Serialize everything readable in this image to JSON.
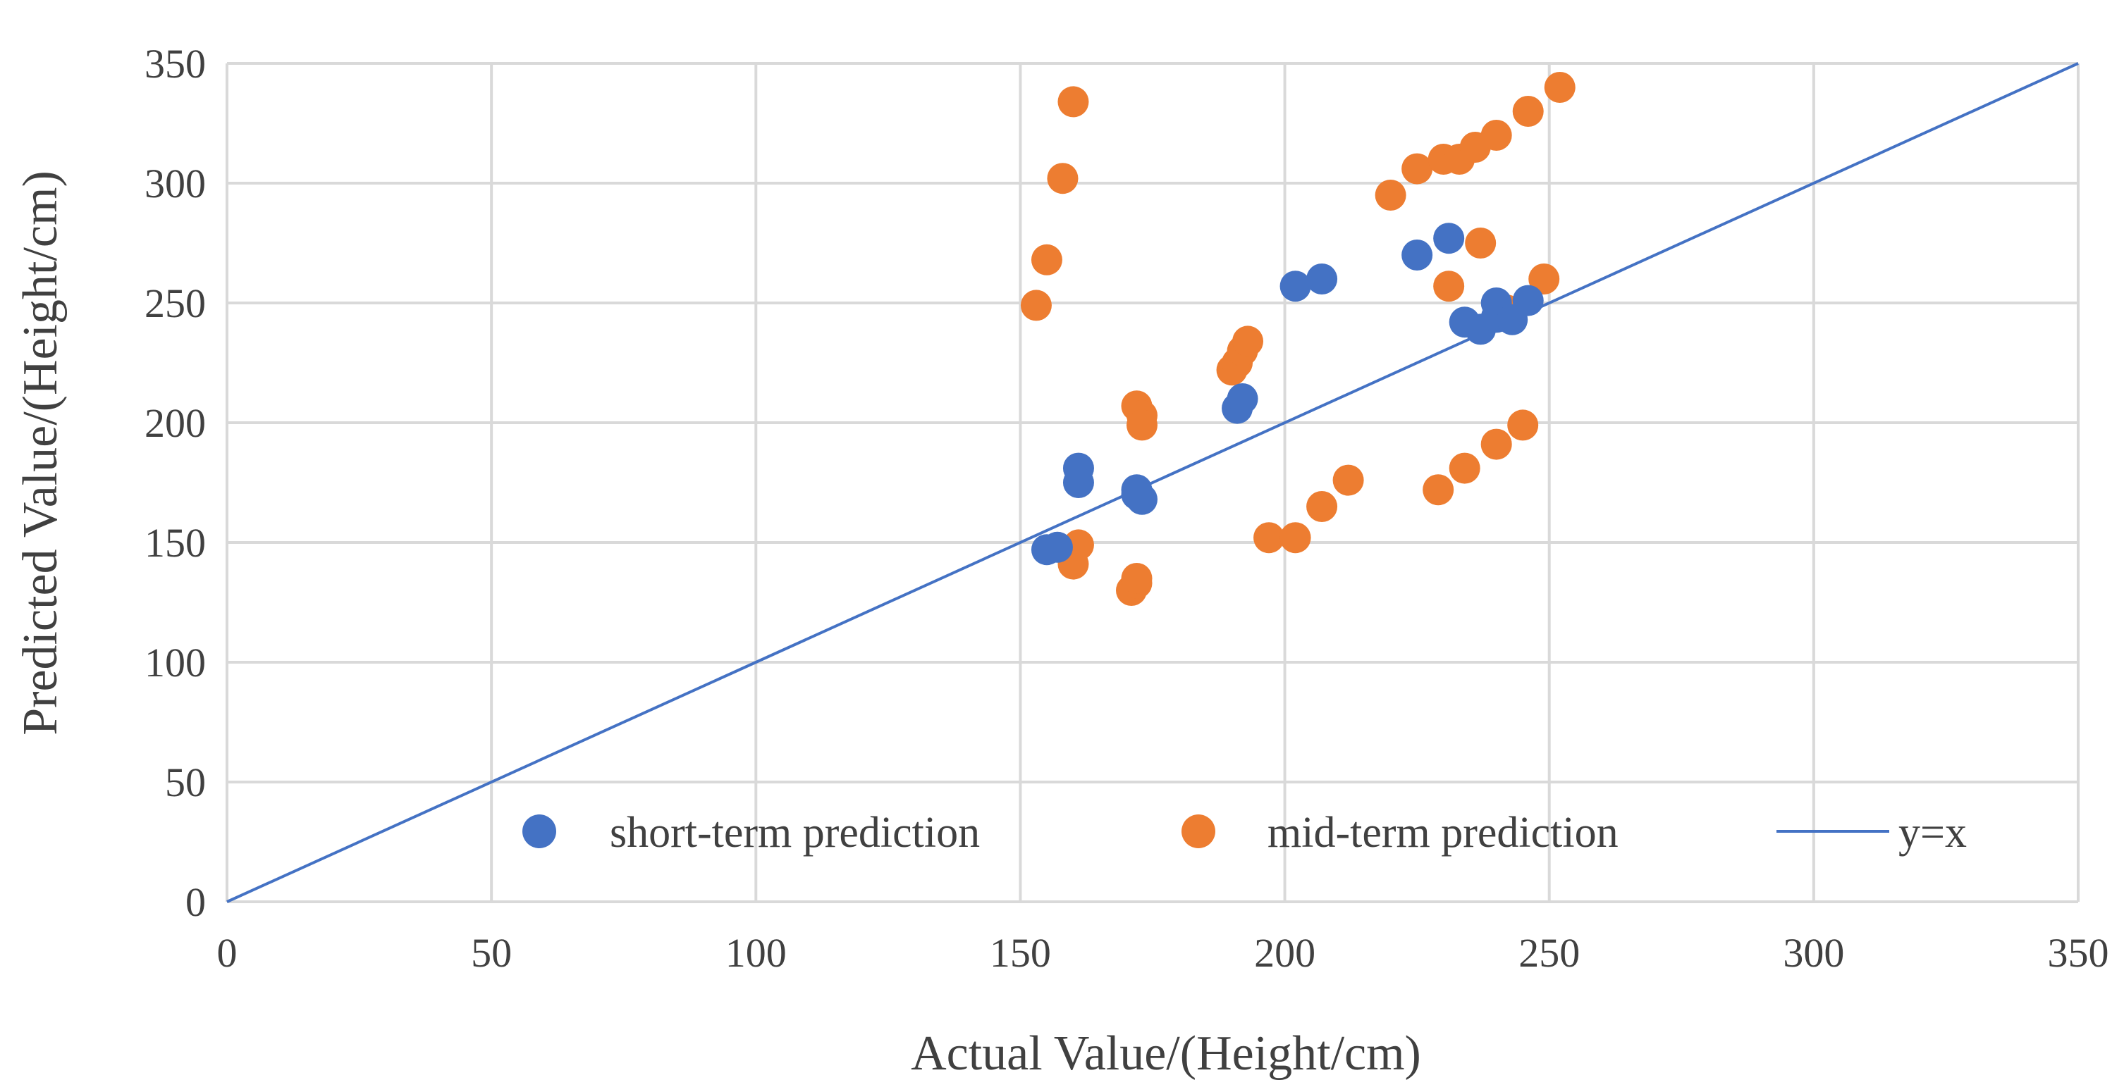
{
  "chart_data": {
    "type": "scatter",
    "xlabel": "Actual Value/(Height/cm)",
    "ylabel": "Predicted Value/(Height/cm)",
    "xlim": [
      0,
      350
    ],
    "ylim": [
      0,
      350
    ],
    "xticks": [
      0,
      50,
      100,
      150,
      200,
      250,
      300,
      350
    ],
    "yticks": [
      0,
      50,
      100,
      150,
      200,
      250,
      300,
      350
    ],
    "grid": true,
    "legend_position": "bottom",
    "series": [
      {
        "name": "short-term prediction",
        "color": "#4472C4",
        "marker": "circle",
        "points": [
          [
            155,
            147
          ],
          [
            157,
            148
          ],
          [
            161,
            181
          ],
          [
            161,
            175
          ],
          [
            172,
            172
          ],
          [
            172,
            170
          ],
          [
            173,
            168
          ],
          [
            191,
            206
          ],
          [
            192,
            210
          ],
          [
            202,
            257
          ],
          [
            207,
            260
          ],
          [
            225,
            270
          ],
          [
            231,
            277
          ],
          [
            234,
            242
          ],
          [
            237,
            239
          ],
          [
            240,
            250
          ],
          [
            240,
            244
          ],
          [
            243,
            243
          ],
          [
            246,
            251
          ]
        ]
      },
      {
        "name": "mid-term prediction",
        "color": "#ED7D31",
        "marker": "circle",
        "points": [
          [
            153,
            249
          ],
          [
            155,
            268
          ],
          [
            158,
            302
          ],
          [
            160,
            334
          ],
          [
            160,
            141
          ],
          [
            161,
            149
          ],
          [
            171,
            130
          ],
          [
            172,
            133
          ],
          [
            172,
            135
          ],
          [
            172,
            207
          ],
          [
            173,
            203
          ],
          [
            173,
            199
          ],
          [
            190,
            222
          ],
          [
            191,
            225
          ],
          [
            192,
            230
          ],
          [
            193,
            234
          ],
          [
            197,
            152
          ],
          [
            202,
            152
          ],
          [
            207,
            165
          ],
          [
            212,
            176
          ],
          [
            220,
            295
          ],
          [
            225,
            306
          ],
          [
            230,
            310
          ],
          [
            233,
            310
          ],
          [
            236,
            315
          ],
          [
            240,
            320
          ],
          [
            246,
            330
          ],
          [
            252,
            340
          ],
          [
            229,
            172
          ],
          [
            231,
            257
          ],
          [
            234,
            181
          ],
          [
            237,
            275
          ],
          [
            240,
            191
          ],
          [
            242,
            247
          ],
          [
            245,
            199
          ],
          [
            249,
            260
          ]
        ]
      },
      {
        "name": "y=x",
        "color": "#4472C4",
        "type": "line",
        "points": [
          [
            0,
            0
          ],
          [
            350,
            350
          ]
        ]
      }
    ]
  }
}
